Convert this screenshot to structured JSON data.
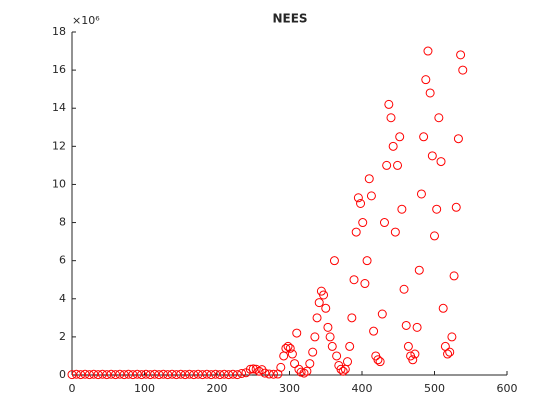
{
  "chart_data": {
    "type": "scatter",
    "title": "NEES",
    "y_exponent_label": "×10⁶",
    "series": [
      {
        "color": "#ff0000",
        "x": [
          0,
          6,
          12,
          18,
          24,
          30,
          36,
          42,
          48,
          54,
          60,
          66,
          72,
          78,
          84,
          90,
          96,
          102,
          108,
          114,
          120,
          126,
          132,
          138,
          144,
          150,
          156,
          162,
          168,
          174,
          180,
          186,
          192,
          198,
          204,
          210,
          216,
          222,
          228,
          234,
          240,
          246,
          250,
          254,
          258,
          262,
          266,
          272,
          278,
          284,
          288,
          292,
          295,
          298,
          301,
          304,
          307,
          310,
          313,
          316,
          320,
          324,
          328,
          332,
          335,
          338,
          341,
          344,
          347,
          350,
          353,
          356,
          359,
          362,
          365,
          368,
          371,
          374,
          377,
          380,
          383,
          386,
          389,
          392,
          395,
          398,
          401,
          404,
          407,
          410,
          413,
          416,
          419,
          422,
          425,
          428,
          431,
          434,
          437,
          440,
          443,
          446,
          449,
          452,
          455,
          458,
          461,
          464,
          467,
          470,
          473,
          476,
          479,
          482,
          485,
          488,
          491,
          494,
          497,
          500,
          503,
          506,
          509,
          512,
          515,
          518,
          521,
          524,
          527,
          530,
          533,
          536,
          539
        ],
        "values": [
          0.02,
          0.04,
          0.02,
          0.04,
          0.02,
          0.04,
          0.02,
          0.04,
          0.02,
          0.04,
          0.02,
          0.04,
          0.02,
          0.04,
          0.02,
          0.04,
          0.02,
          0.04,
          0.02,
          0.04,
          0.02,
          0.04,
          0.02,
          0.04,
          0.02,
          0.04,
          0.02,
          0.04,
          0.02,
          0.04,
          0.02,
          0.04,
          0.02,
          0.04,
          0.02,
          0.04,
          0.02,
          0.04,
          0.02,
          0.08,
          0.12,
          0.3,
          0.32,
          0.3,
          0.2,
          0.28,
          0.1,
          0.05,
          0.04,
          0.05,
          0.4,
          1.0,
          1.4,
          1.5,
          1.4,
          1.1,
          0.6,
          2.2,
          0.3,
          0.15,
          0.1,
          0.2,
          0.6,
          1.2,
          2.0,
          3.0,
          3.8,
          4.4,
          4.2,
          3.5,
          2.5,
          2.0,
          1.5,
          6.0,
          1.0,
          0.5,
          0.3,
          0.2,
          0.3,
          0.7,
          1.5,
          3.0,
          5.0,
          7.5,
          9.3,
          9.0,
          8.0,
          4.8,
          6.0,
          10.3,
          9.4,
          2.3,
          1.0,
          0.8,
          0.7,
          3.2,
          8.0,
          11.0,
          14.2,
          13.5,
          12.0,
          7.5,
          11.0,
          12.5,
          8.7,
          4.5,
          2.6,
          1.5,
          1.0,
          0.8,
          1.1,
          2.5,
          5.5,
          9.5,
          12.5,
          15.5,
          17.0,
          14.8,
          11.5,
          7.3,
          8.7,
          13.5,
          11.2,
          3.5,
          1.5,
          1.1,
          1.2,
          2.0,
          5.2,
          8.8,
          12.4,
          16.8,
          16.0
        ]
      }
    ],
    "reference_line": {
      "x": [
        0,
        290
      ],
      "values": [
        0,
        0
      ],
      "color": "#000000"
    },
    "xlim": [
      0,
      600
    ],
    "xticks": [
      0,
      100,
      200,
      300,
      400,
      500,
      600
    ],
    "ylim": [
      0,
      18
    ],
    "yticks": [
      0,
      2,
      4,
      6,
      8,
      10,
      12,
      14,
      16,
      18
    ]
  }
}
